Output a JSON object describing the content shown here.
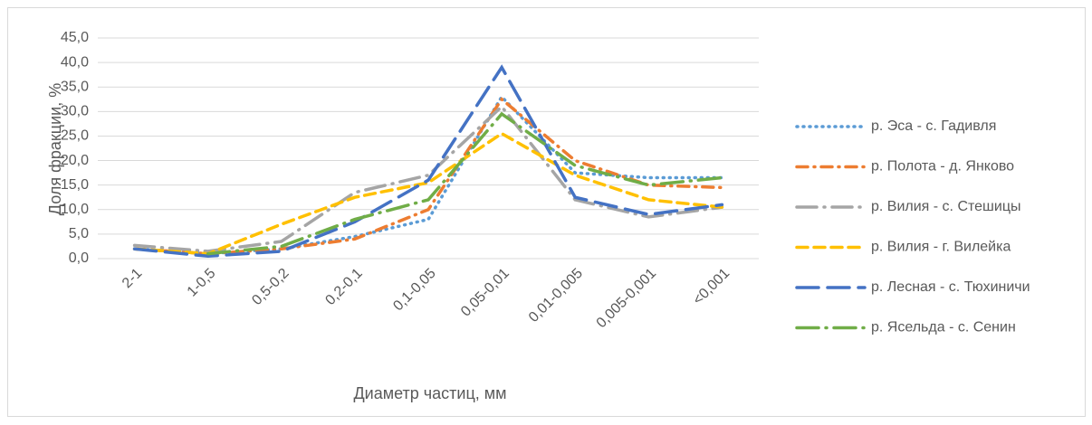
{
  "chart_data": {
    "type": "line",
    "xlabel": "Диаметр частиц, мм",
    "ylabel": "Доля фракции, %",
    "categories": [
      "2-1",
      "1-0,5",
      "0,5-0,2",
      "0,2-0,1",
      "0,1-0,05",
      "0,05-0,01",
      "0,01-0,005",
      "0,005-0,001",
      "<0,001"
    ],
    "series": [
      {
        "name": "р. Эса - с. Гадивля",
        "color": "#5b9bd5",
        "dash": "1 6",
        "values": [
          2.0,
          1.0,
          2.0,
          4.5,
          8.0,
          33.0,
          17.5,
          16.5,
          16.5
        ]
      },
      {
        "name": "р. Полота - д. Янково",
        "color": "#ed7d31",
        "dash": "12 7 1 7",
        "values": [
          2.0,
          1.0,
          2.0,
          4.0,
          10.0,
          32.5,
          20.0,
          15.0,
          14.5
        ]
      },
      {
        "name": "р. Вилия - с. Стешицы",
        "color": "#a5a5a5",
        "dash": "22 8 1 8",
        "values": [
          2.7,
          1.5,
          3.5,
          13.5,
          17.0,
          31.0,
          12.0,
          8.5,
          10.5
        ]
      },
      {
        "name": "р. Вилия - г. Вилейка",
        "color": "#ffc000",
        "dash": "12 7",
        "values": [
          2.0,
          1.0,
          7.0,
          12.5,
          15.5,
          25.5,
          17.0,
          12.0,
          10.5
        ]
      },
      {
        "name": "р. Лесная - с. Тюхиничи",
        "color": "#4472c4",
        "dash": "24 10",
        "values": [
          2.0,
          0.5,
          1.5,
          7.5,
          16.0,
          39.0,
          12.5,
          9.0,
          11.0
        ]
      },
      {
        "name": "р. Ясельда - с. Сенин",
        "color": "#70ad47",
        "dash": "24 8 1 8",
        "values": [
          null,
          1.0,
          2.5,
          8.0,
          12.0,
          29.5,
          19.0,
          15.0,
          16.5
        ]
      }
    ],
    "ylim": [
      0,
      45
    ],
    "yticks": [
      {
        "value": 0,
        "label": "0,0"
      },
      {
        "value": 5,
        "label": "5,0"
      },
      {
        "value": 10,
        "label": "10,0"
      },
      {
        "value": 15,
        "label": "15,0"
      },
      {
        "value": 20,
        "label": "20,0"
      },
      {
        "value": 25,
        "label": "25,0"
      },
      {
        "value": 30,
        "label": "30,0"
      },
      {
        "value": 35,
        "label": "35,0"
      },
      {
        "value": 40,
        "label": "40,0"
      },
      {
        "value": 45,
        "label": "45,0"
      }
    ],
    "grid": true,
    "legend": "right"
  }
}
